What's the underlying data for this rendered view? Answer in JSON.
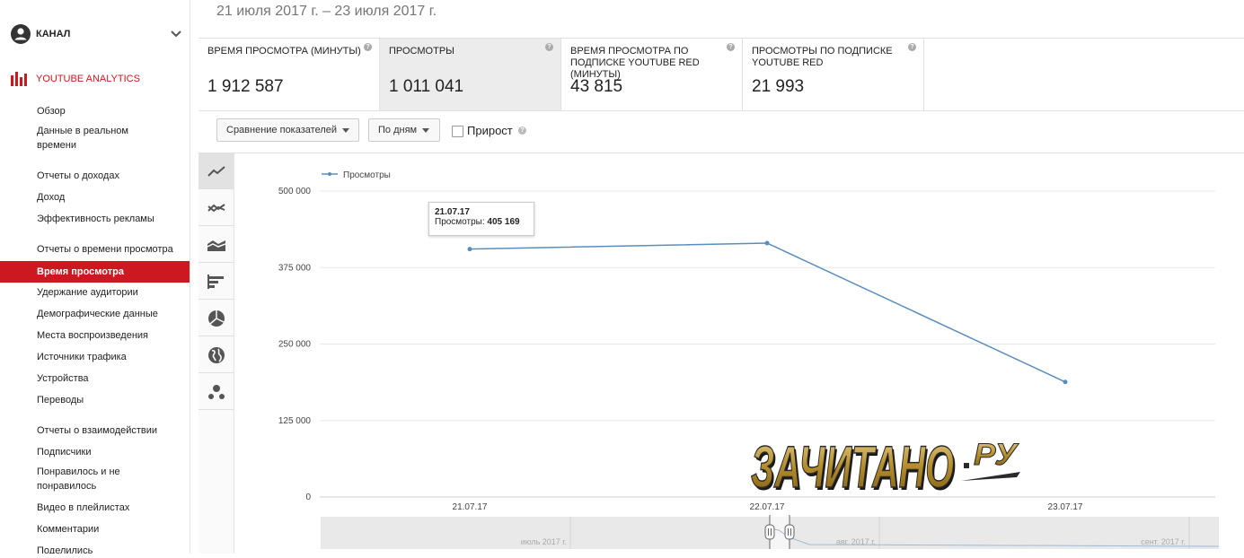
{
  "sidebar": {
    "channel_label": "КАНАЛ",
    "analytics_label": "YOUTUBE ANALYTICS",
    "items": [
      {
        "label": "Обзор"
      },
      {
        "label": "Данные в реальном времени"
      },
      {
        "label": "Отчеты о доходах"
      },
      {
        "label": "Доход"
      },
      {
        "label": "Эффективность рекламы"
      },
      {
        "label": "Отчеты о времени просмотра"
      },
      {
        "label": "Время просмотра"
      },
      {
        "label": "Удержание аудитории"
      },
      {
        "label": "Демографические данные"
      },
      {
        "label": "Места воспроизведения"
      },
      {
        "label": "Источники трафика"
      },
      {
        "label": "Устройства"
      },
      {
        "label": "Переводы"
      },
      {
        "label": "Отчеты о взаимодействии"
      },
      {
        "label": "Подписчики"
      },
      {
        "label": "Понравилось и не понравилось"
      },
      {
        "label": "Видео в плейлистах"
      },
      {
        "label": "Комментарии"
      },
      {
        "label": "Поделились"
      }
    ],
    "accent_color": "#cc181e"
  },
  "header": {
    "date_range": "21 июля 2017 г. – 23 июля 2017 г."
  },
  "metrics": [
    {
      "title": "Время просмотра (минуты)",
      "value": "1 912 587"
    },
    {
      "title": "Просмотры",
      "value": "1 011 041"
    },
    {
      "title": "Время просмотра по подписке YouTube Red (минуты)",
      "value": "43 815"
    },
    {
      "title": "Просмотры по подписке YouTube Red",
      "value": "21 993"
    }
  ],
  "toolbar": {
    "compare_label": "Сравнение показателей",
    "period_label": "По дням",
    "growth_label": "Прирост"
  },
  "chart_types": [
    "line-chart-icon",
    "multiline-chart-icon",
    "stacked-area-icon",
    "bar-chart-icon",
    "pie-chart-icon",
    "globe-map-icon",
    "bubble-chart-icon"
  ],
  "chart_data": {
    "type": "line",
    "series": [
      {
        "name": "Просмотры",
        "values": [
          405169,
          415000,
          188000
        ],
        "color": "#5a8dbf"
      }
    ],
    "x": [
      "21.07.17",
      "22.07.17",
      "23.07.17"
    ],
    "y_ticks": [
      "500 000",
      "375 000",
      "250 000",
      "125 000",
      "0"
    ],
    "ylim": [
      0,
      500000
    ],
    "grid": true,
    "legend": "top-left"
  },
  "tooltip": {
    "date": "21.07.17",
    "label": "Просмотры:",
    "value": "405 169"
  },
  "navigator": {
    "labels": [
      "июль 2017 г.",
      "авг. 2017 г.",
      "сент. 2017 г."
    ]
  },
  "watermark": {
    "text": "ЗАЧИТАНО",
    "suffix": "РУ"
  }
}
